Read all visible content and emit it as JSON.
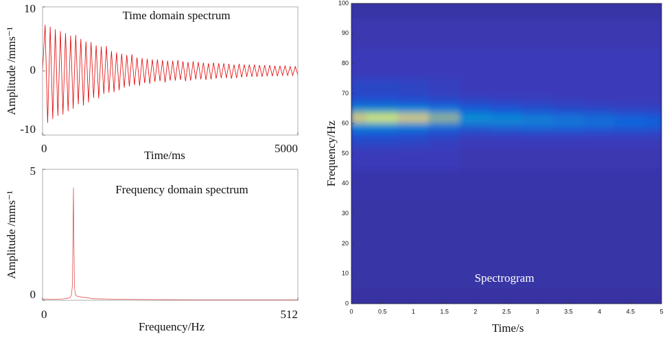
{
  "chart_data": [
    {
      "type": "line",
      "title": "Time domain spectrum",
      "x_label": "Time/ms",
      "y_label": "Amplitude /mms⁻¹",
      "xlim": [
        0,
        5000
      ],
      "xticks": [
        0,
        5000
      ],
      "ylim": [
        -10,
        10
      ],
      "yticks": [
        -10,
        0,
        10
      ],
      "series": [
        {
          "color": "#e00000",
          "x": [
            0,
            50,
            100,
            150,
            200,
            250,
            300,
            350,
            400,
            450,
            500,
            550,
            600,
            650,
            700,
            750,
            800,
            850,
            900,
            950,
            1000,
            1050,
            1100,
            1150,
            1200,
            1250,
            1300,
            1350,
            1400,
            1450,
            1500,
            1550,
            1600,
            1650,
            1700,
            1750,
            1800,
            1850,
            1900,
            1950,
            2000,
            2050,
            2100,
            2150,
            2200,
            2250,
            2300,
            2350,
            2400,
            2450,
            2500,
            2550,
            2600,
            2650,
            2700,
            2750,
            2800,
            2850,
            2900,
            2950,
            3000,
            3050,
            3100,
            3150,
            3200,
            3250,
            3300,
            3350,
            3400,
            3450,
            3500,
            3550,
            3600,
            3650,
            3700,
            3750,
            3800,
            3850,
            3900,
            3950,
            4000,
            4050,
            4100,
            4150,
            4200,
            4250,
            4300,
            4350,
            4400,
            4450,
            4500,
            4550,
            4600,
            4650,
            4700,
            4750,
            4800,
            4850,
            4900,
            4950,
            5000
          ],
          "values": [
            0,
            7.2,
            -8.1,
            6.9,
            -7.5,
            6.5,
            -7.0,
            6.2,
            -6.8,
            5.9,
            -6.3,
            5.5,
            -5.9,
            5.6,
            -5.2,
            5.0,
            -5.4,
            4.6,
            -4.9,
            4.5,
            -4.2,
            4.0,
            -4.3,
            3.8,
            -3.6,
            3.9,
            -3.4,
            3.1,
            -3.3,
            2.9,
            -3.0,
            2.7,
            -2.6,
            2.5,
            -2.4,
            2.6,
            -2.2,
            2.1,
            -2.3,
            2.0,
            -1.9,
            1.9,
            -2.0,
            1.8,
            -1.7,
            1.8,
            -1.6,
            1.7,
            -1.8,
            1.6,
            -1.5,
            1.6,
            -1.5,
            1.7,
            -1.4,
            1.5,
            -1.6,
            1.4,
            -1.5,
            1.5,
            -1.3,
            1.4,
            -1.3,
            1.3,
            -1.4,
            1.2,
            -1.3,
            1.3,
            -1.2,
            1.2,
            -1.1,
            1.2,
            -1.1,
            1.1,
            -1.2,
            1.0,
            -1.1,
            1.1,
            -1.0,
            1.0,
            -0.9,
            1.0,
            -0.9,
            1.0,
            -0.9,
            0.9,
            -0.9,
            0.9,
            -0.8,
            0.9,
            -0.8,
            0.8,
            -0.8,
            0.8,
            -0.7,
            0.8,
            -0.7,
            0.7,
            -0.7,
            0.7,
            -0.6
          ]
        }
      ]
    },
    {
      "type": "line",
      "title": "Frequency domain spectrum",
      "x_label": "Frequency/Hz",
      "y_label": "Amplitude /mms⁻¹",
      "xlim": [
        0,
        512
      ],
      "xticks": [
        0,
        512
      ],
      "ylim": [
        0,
        5
      ],
      "yticks": [
        0,
        5
      ],
      "series": [
        {
          "color": "#e05050",
          "x": [
            0,
            20,
            40,
            50,
            55,
            58,
            60,
            61,
            62,
            63,
            64,
            66,
            70,
            80,
            90,
            100,
            150,
            200,
            300,
            400,
            512
          ],
          "values": [
            0.05,
            0.04,
            0.05,
            0.08,
            0.1,
            0.2,
            0.6,
            2.5,
            4.3,
            2.0,
            0.5,
            0.2,
            0.15,
            0.12,
            0.1,
            0.06,
            0.04,
            0.03,
            0.02,
            0.02,
            0.02
          ]
        }
      ]
    },
    {
      "type": "heatmap",
      "title": "Spectrogram",
      "x_label": "Time/s",
      "y_label": "Frequency/Hz",
      "xlim": [
        0,
        5
      ],
      "xticks": [
        0,
        0.5,
        1,
        1.5,
        2,
        2.5,
        3,
        3.5,
        4,
        4.5,
        5
      ],
      "ylim": [
        0,
        100
      ],
      "yticks": [
        0,
        10,
        20,
        30,
        40,
        50,
        60,
        70,
        80,
        90,
        100
      ],
      "colormap": "parula",
      "x": [
        0,
        0.5,
        1,
        1.5,
        2,
        2.5,
        3,
        3.5,
        4,
        4.5,
        5
      ],
      "y": [
        0,
        10,
        20,
        30,
        40,
        50,
        54,
        56,
        58,
        60,
        62,
        64,
        66,
        68,
        70,
        80,
        90,
        100
      ],
      "values": [
        [
          0.05,
          0.05,
          0.05,
          0.05,
          0.05,
          0.05,
          0.05,
          0.05,
          0.05,
          0.05,
          0.05
        ],
        [
          0.06,
          0.06,
          0.06,
          0.06,
          0.06,
          0.06,
          0.06,
          0.06,
          0.06,
          0.06,
          0.06
        ],
        [
          0.06,
          0.06,
          0.06,
          0.06,
          0.06,
          0.06,
          0.06,
          0.06,
          0.06,
          0.06,
          0.06
        ],
        [
          0.06,
          0.06,
          0.06,
          0.06,
          0.06,
          0.06,
          0.06,
          0.06,
          0.06,
          0.06,
          0.06
        ],
        [
          0.07,
          0.07,
          0.07,
          0.07,
          0.07,
          0.07,
          0.07,
          0.07,
          0.07,
          0.07,
          0.07
        ],
        [
          0.1,
          0.1,
          0.1,
          0.1,
          0.08,
          0.08,
          0.08,
          0.08,
          0.08,
          0.08,
          0.08
        ],
        [
          0.15,
          0.15,
          0.14,
          0.12,
          0.1,
          0.1,
          0.1,
          0.1,
          0.1,
          0.1,
          0.1
        ],
        [
          0.2,
          0.2,
          0.18,
          0.15,
          0.12,
          0.12,
          0.12,
          0.12,
          0.12,
          0.12,
          0.12
        ],
        [
          0.3,
          0.3,
          0.28,
          0.22,
          0.18,
          0.2,
          0.22,
          0.22,
          0.2,
          0.2,
          0.18
        ],
        [
          0.55,
          0.55,
          0.5,
          0.42,
          0.35,
          0.38,
          0.38,
          0.36,
          0.33,
          0.3,
          0.28
        ],
        [
          0.95,
          1,
          0.95,
          0.8,
          0.5,
          0.45,
          0.4,
          0.35,
          0.32,
          0.28,
          0.25
        ],
        [
          0.6,
          0.6,
          0.55,
          0.45,
          0.3,
          0.25,
          0.22,
          0.2,
          0.18,
          0.16,
          0.15
        ],
        [
          0.3,
          0.3,
          0.28,
          0.25,
          0.2,
          0.18,
          0.16,
          0.14,
          0.13,
          0.12,
          0.12
        ],
        [
          0.2,
          0.2,
          0.18,
          0.16,
          0.14,
          0.12,
          0.12,
          0.11,
          0.1,
          0.1,
          0.1
        ],
        [
          0.15,
          0.15,
          0.14,
          0.12,
          0.1,
          0.1,
          0.1,
          0.1,
          0.1,
          0.1,
          0.1
        ],
        [
          0.1,
          0.1,
          0.1,
          0.1,
          0.1,
          0.1,
          0.1,
          0.1,
          0.1,
          0.1,
          0.1
        ],
        [
          0.08,
          0.08,
          0.08,
          0.08,
          0.08,
          0.08,
          0.08,
          0.08,
          0.08,
          0.08,
          0.08
        ],
        [
          0.06,
          0.06,
          0.06,
          0.06,
          0.06,
          0.06,
          0.06,
          0.06,
          0.06,
          0.06,
          0.06
        ]
      ]
    }
  ]
}
